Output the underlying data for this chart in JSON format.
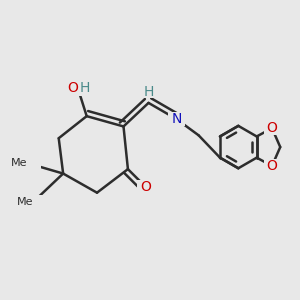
{
  "bg_color": "#e8e8e8",
  "bond_color": "#2d2d2d",
  "bond_width": 1.8,
  "atom_colors": {
    "O": "#cc0000",
    "N": "#1111bb",
    "H_label": "#4a8a8a",
    "C": "#2d2d2d"
  },
  "font_size": 10,
  "fig_size": [
    3.0,
    3.0
  ],
  "dpi": 100,
  "xlim": [
    0,
    10
  ],
  "ylim": [
    0,
    10
  ]
}
